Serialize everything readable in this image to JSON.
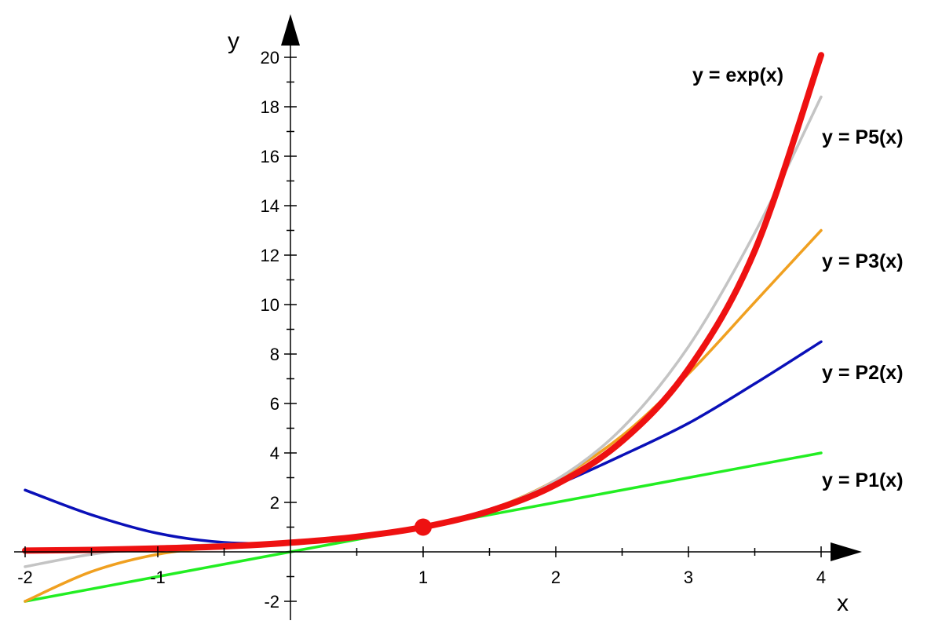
{
  "chart_data": {
    "type": "line",
    "title": "",
    "xlabel": "x",
    "ylabel": "y",
    "xlim": [
      -2,
      4
    ],
    "ylim": [
      -2,
      20
    ],
    "grid": false,
    "x_ticks": [
      {
        "value": -2,
        "label": "-2"
      },
      {
        "value": -1,
        "label": "-1"
      },
      {
        "value": 1,
        "label": "1"
      },
      {
        "value": 2,
        "label": "2"
      },
      {
        "value": 3,
        "label": "3"
      },
      {
        "value": 4,
        "label": "4"
      }
    ],
    "y_ticks": [
      {
        "value": -2,
        "label": "-2"
      },
      {
        "value": 2,
        "label": "2"
      },
      {
        "value": 4,
        "label": "4"
      },
      {
        "value": 6,
        "label": "6"
      },
      {
        "value": 8,
        "label": "8"
      },
      {
        "value": 10,
        "label": "10"
      },
      {
        "value": 12,
        "label": "12"
      },
      {
        "value": 14,
        "label": "14"
      },
      {
        "value": 16,
        "label": "16"
      },
      {
        "value": 18,
        "label": "18"
      },
      {
        "value": 20,
        "label": "20"
      }
    ],
    "series": [
      {
        "name": "y = P1(x)",
        "color": "#22ee22",
        "x": [
          -2,
          -1,
          0,
          1,
          2,
          3,
          4
        ],
        "y": [
          -2,
          -1,
          0,
          1,
          2,
          3,
          4
        ]
      },
      {
        "name": "y = P2(x)",
        "color": "#0a10b8",
        "x": [
          -2,
          -1.5,
          -1,
          -0.5,
          0,
          0.5,
          1,
          1.5,
          2,
          2.5,
          3,
          3.5,
          4
        ],
        "y": [
          2.5,
          1.5,
          0.75,
          0.38,
          0.36,
          0.55,
          1,
          1.72,
          2.7,
          3.9,
          5.2,
          6.8,
          8.5
        ]
      },
      {
        "name": "y = P3(x)",
        "color": "#f0a020",
        "x": [
          -2,
          -1.5,
          -1,
          -0.5,
          0,
          0.5,
          1,
          1.5,
          2,
          2.5,
          3,
          3.5,
          4
        ],
        "y": [
          -2,
          -0.8,
          -0.1,
          0.2,
          0.37,
          0.6,
          1,
          1.7,
          2.9,
          4.7,
          7.2,
          10.1,
          13
        ]
      },
      {
        "name": "y = P5(x)",
        "color": "#c4c4c4",
        "x": [
          -2,
          -1.5,
          -1,
          -0.5,
          0,
          0.5,
          1,
          1.5,
          2,
          2.5,
          3,
          3.5,
          4
        ],
        "y": [
          -0.6,
          -0.1,
          0.18,
          0.3,
          0.37,
          0.6,
          1,
          1.7,
          2.9,
          5,
          8.3,
          12.9,
          18.4
        ]
      },
      {
        "name": "y = exp(x)",
        "color": "#ee1111",
        "x": [
          -2,
          -1.5,
          -1,
          -0.5,
          0,
          0.5,
          1,
          1.5,
          2,
          2.5,
          3,
          3.5,
          4
        ],
        "y": [
          0.05,
          0.08,
          0.14,
          0.22,
          0.37,
          0.61,
          1,
          1.65,
          2.72,
          4.48,
          7.39,
          12.18,
          20.09
        ]
      }
    ],
    "point": {
      "x": 1,
      "y": 1,
      "color": "#ee1111"
    },
    "labels": [
      {
        "series": "y = exp(x)",
        "text": "y = exp(x)"
      },
      {
        "series": "y = P5(x)",
        "text": "y = P5(x)"
      },
      {
        "series": "y = P3(x)",
        "text": "y = P3(x)"
      },
      {
        "series": "y = P2(x)",
        "text": "y = P2(x)"
      },
      {
        "series": "y = P1(x)",
        "text": "y = P1(x)"
      }
    ]
  }
}
